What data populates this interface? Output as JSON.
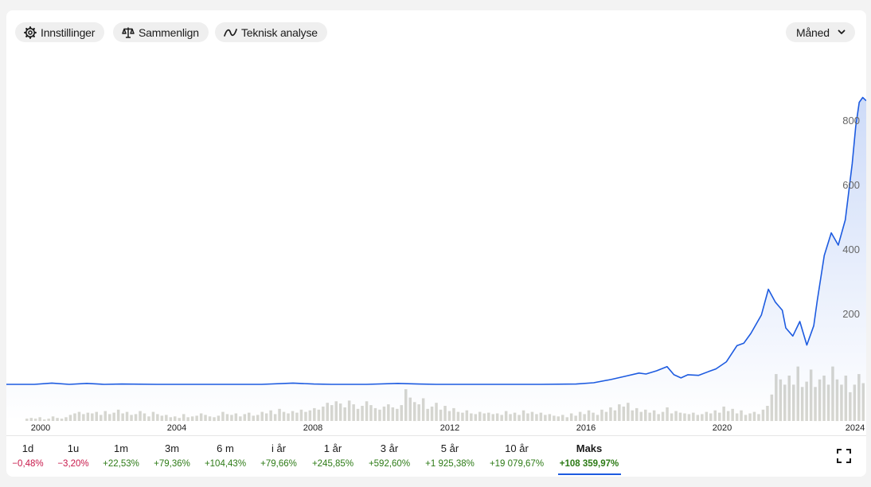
{
  "toolbar": {
    "settings_label": "Innstillinger",
    "compare_label": "Sammenlign",
    "analysis_label": "Teknisk analyse",
    "interval_label": "Måned"
  },
  "periods": [
    {
      "label": "1d",
      "change": "−0,48%",
      "sign": "neg"
    },
    {
      "label": "1u",
      "change": "−3,20%",
      "sign": "neg"
    },
    {
      "label": "1m",
      "change": "+22,53%",
      "sign": "pos"
    },
    {
      "label": "3m",
      "change": "+79,36%",
      "sign": "pos"
    },
    {
      "label": "6 m",
      "change": "+104,43%",
      "sign": "pos"
    },
    {
      "label": "i år",
      "change": "+79,66%",
      "sign": "pos"
    },
    {
      "label": "1 år",
      "change": "+245,85%",
      "sign": "pos"
    },
    {
      "label": "3 år",
      "change": "+592,60%",
      "sign": "pos"
    },
    {
      "label": "5 år",
      "change": "+1 925,38%",
      "sign": "pos"
    },
    {
      "label": "10 år",
      "change": "+19 079,67%",
      "sign": "pos"
    },
    {
      "label": "Maks",
      "change": "+108 359,97%",
      "sign": "pos",
      "active": true
    }
  ],
  "colors": {
    "line": "#1d5be0",
    "volume": "#d6d6d0",
    "negative": "#c8184a",
    "positive": "#2d7b16"
  },
  "icons": {
    "settings": "gear-icon",
    "compare": "scale-icon",
    "analysis": "trend-line-icon",
    "interval": "chevron-down-icon",
    "fullscreen": "fullscreen-icon"
  },
  "chart_data": {
    "type": "line",
    "x_ticks": [
      "2000",
      "2004",
      "2008",
      "2012",
      "2016",
      "2020",
      "2024"
    ],
    "y_ticks": [
      "200",
      "400",
      "600",
      "800"
    ],
    "xlim": [
      1999.7,
      2024.3
    ],
    "ylim": [
      0,
      900
    ],
    "grid": false,
    "series": [
      {
        "x": [
          1999.7,
          2000.5,
          2001.0,
          2001.5,
          2002.0,
          2002.5,
          2003.0,
          2004.0,
          2005.0,
          2006.0,
          2007.0,
          2007.9,
          2008.5,
          2009.0,
          2010.0,
          2010.9,
          2011.5,
          2012.0,
          2013.0,
          2014.0,
          2015.0,
          2016.0,
          2016.5,
          2017.0,
          2017.4,
          2017.8,
          2018.0,
          2018.3,
          2018.6,
          2018.8,
          2019.0,
          2019.2,
          2019.5,
          2019.8,
          2020.0,
          2020.3,
          2020.6,
          2020.8,
          2021.0,
          2021.3,
          2021.5,
          2021.7,
          2021.9,
          2022.0,
          2022.2,
          2022.4,
          2022.6,
          2022.8,
          2022.9,
          2023.1,
          2023.3,
          2023.5,
          2023.7,
          2023.9,
          2024.0,
          2024.1,
          2024.2,
          2024.3
        ],
        "y": [
          0,
          0,
          4,
          0,
          3,
          0,
          1,
          0,
          0,
          0,
          0,
          4,
          1,
          0,
          0,
          3,
          1,
          0,
          0,
          0,
          0,
          1,
          5,
          15,
          25,
          35,
          32,
          42,
          55,
          30,
          20,
          30,
          28,
          40,
          48,
          70,
          120,
          128,
          158,
          215,
          295,
          255,
          230,
          175,
          150,
          195,
          122,
          182,
          260,
          400,
          470,
          432,
          510,
          685,
          800,
          875,
          890,
          880
        ]
      }
    ],
    "volume": [
      3,
      4,
      3,
      5,
      2,
      3,
      6,
      4,
      3,
      5,
      8,
      10,
      12,
      9,
      11,
      10,
      12,
      8,
      13,
      9,
      11,
      15,
      10,
      12,
      8,
      9,
      13,
      10,
      6,
      12,
      9,
      7,
      8,
      5,
      6,
      4,
      9,
      5,
      6,
      7,
      10,
      8,
      6,
      5,
      7,
      12,
      9,
      8,
      10,
      6,
      9,
      11,
      7,
      8,
      12,
      10,
      14,
      9,
      16,
      12,
      10,
      13,
      11,
      15,
      12,
      14,
      17,
      15,
      19,
      24,
      21,
      26,
      23,
      18,
      27,
      22,
      16,
      20,
      26,
      21,
      17,
      15,
      19,
      22,
      18,
      16,
      21,
      42,
      31,
      25,
      22,
      30,
      16,
      19,
      24,
      15,
      20,
      13,
      17,
      12,
      11,
      14,
      10,
      9,
      12,
      10,
      11,
      9,
      10,
      8,
      13,
      9,
      11,
      8,
      14,
      10,
      12,
      9,
      11,
      8,
      9,
      7,
      6,
      8,
      5,
      10,
      7,
      12,
      9,
      14,
      11,
      8,
      15,
      12,
      18,
      14,
      22,
      19,
      24,
      14,
      17,
      12,
      15,
      11,
      14,
      9,
      12,
      18,
      10,
      13,
      11,
      10,
      9,
      11,
      8,
      9,
      12,
      10,
      14,
      11,
      19,
      13,
      16,
      10,
      14,
      8,
      10,
      12,
      9,
      15,
      20,
      35,
      62,
      55,
      48,
      60,
      48,
      72,
      45,
      52,
      68,
      45,
      55,
      60,
      48,
      72,
      55,
      48,
      60,
      38,
      48,
      62,
      50
    ]
  }
}
